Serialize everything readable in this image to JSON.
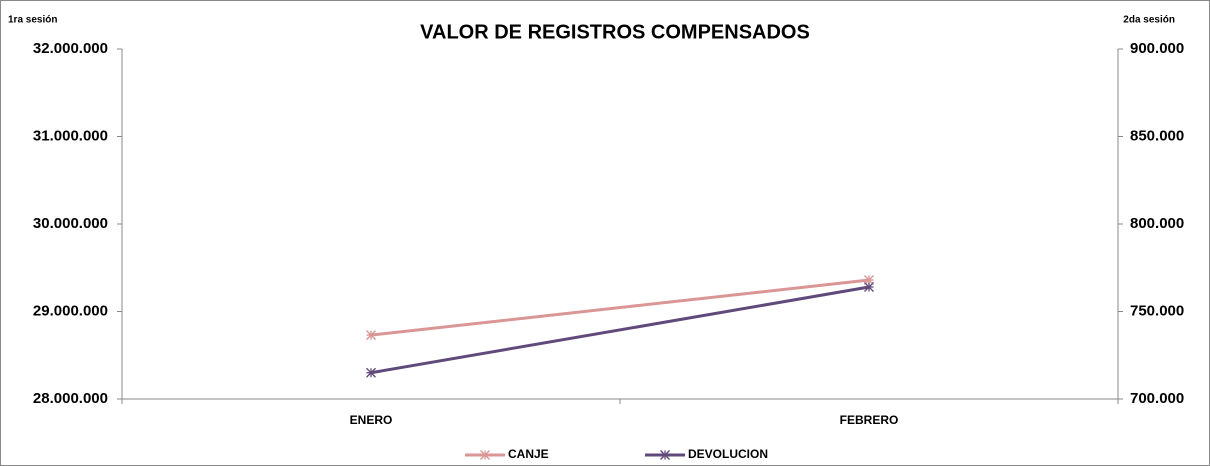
{
  "chart_data": {
    "type": "line",
    "title": "VALOR DE REGISTROS COMPENSADOS",
    "y_label": "1ra sesión",
    "y2_label": "2da sesión",
    "categories": [
      "ENERO",
      "FEBRERO"
    ],
    "series": [
      {
        "name": "CANJE",
        "color": "#d99694",
        "values": [
          28730000,
          29360000
        ]
      },
      {
        "name": "DEVOLUCION",
        "color": "#604a7b",
        "axis": "y2",
        "values": [
          715000,
          764000
        ]
      }
    ],
    "ylim": [
      28000000,
      32000000
    ],
    "yticks": [
      {
        "value": 28000000,
        "label": "28.000.000"
      },
      {
        "value": 29000000,
        "label": "29.000.000"
      },
      {
        "value": 30000000,
        "label": "30.000.000"
      },
      {
        "value": 31000000,
        "label": "31.000.000"
      },
      {
        "value": 32000000,
        "label": "32.000.000"
      }
    ],
    "y2lim": [
      700000,
      900000
    ],
    "y2ticks": [
      {
        "value": 700000,
        "label": "700.000"
      },
      {
        "value": 750000,
        "label": "750.000"
      },
      {
        "value": 800000,
        "label": "800.000"
      },
      {
        "value": 850000,
        "label": "850.000"
      },
      {
        "value": 900000,
        "label": "900.000"
      }
    ],
    "legend": "bottom"
  }
}
